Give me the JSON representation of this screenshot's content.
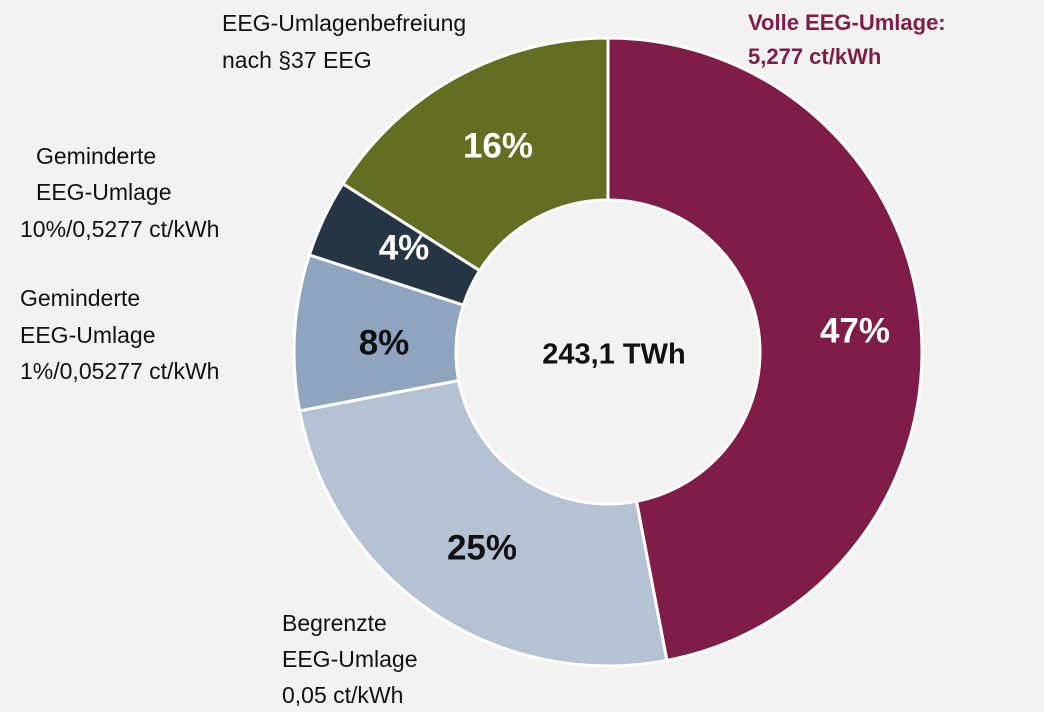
{
  "chart_data": {
    "type": "donut",
    "center_label": "243,1 TWh",
    "categories": [
      [
        "Volle EEG-Umlage:",
        "5,277 ct/kWh"
      ],
      [
        "Begrenzte",
        "EEG-Umlage",
        "0,05 ct/kWh"
      ],
      [
        "Geminderte",
        "EEG-Umlage",
        "1%/0,05277 ct/kWh"
      ],
      [
        "Geminderte",
        "EEG-Umlage",
        "10%/0,5277 ct/kWh"
      ],
      [
        "EEG-Umlagenbefreiung",
        "nach §37 EEG"
      ]
    ],
    "values": [
      47,
      25,
      8,
      4,
      16
    ],
    "value_labels": [
      "47%",
      "25%",
      "8%",
      "4%",
      "16%"
    ],
    "colors": [
      "#7f1c48",
      "#b4c2d4",
      "#8fa5bf",
      "#253544",
      "#646e22"
    ]
  }
}
